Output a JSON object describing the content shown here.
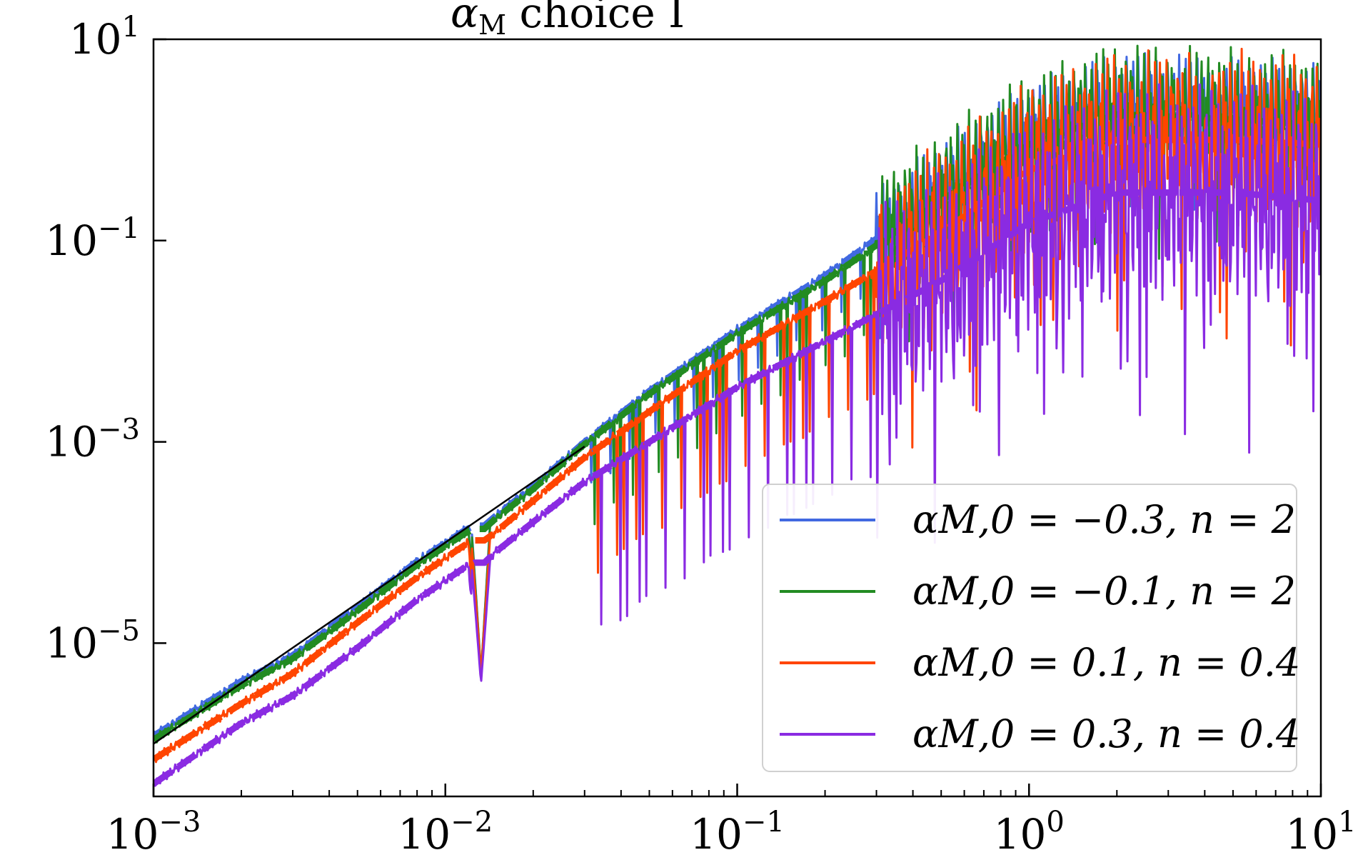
{
  "chart_data": {
    "type": "line",
    "title": "αM choice I",
    "xlabel": "",
    "ylabel": "",
    "xscale": "log",
    "yscale": "log",
    "xlim": [
      0.001,
      10
    ],
    "ylim": [
      3e-07,
      10
    ],
    "x_ticks": [
      0.001,
      0.01,
      0.1,
      1,
      10
    ],
    "x_tick_labels": [
      "10⁻³",
      "10⁻²",
      "10⁻¹",
      "10⁰",
      "10¹"
    ],
    "y_ticks": [
      1e-05,
      0.001,
      0.1,
      10
    ],
    "y_tick_labels": [
      "10⁻⁵",
      "10⁻³",
      "10⁻¹",
      "10¹"
    ],
    "legend_position": "lower-right",
    "grid": false,
    "colors": {
      "blue": "#4169e1",
      "green": "#228b22",
      "orange": "#ff4500",
      "purple": "#8a2be2",
      "reference": "#000000"
    },
    "series": [
      {
        "name": "αM,0 = −0.3, n = 2",
        "color": "#4169e1",
        "x": [
          0.001,
          0.002,
          0.003,
          0.005,
          0.008,
          0.012,
          0.013,
          0.014,
          0.02,
          0.03,
          0.05,
          0.1,
          0.2,
          0.5,
          1,
          2,
          5,
          10
        ],
        "y": [
          1.2e-06,
          4.2e-06,
          7.5e-06,
          2.3e-05,
          6.5e-05,
          0.00014,
          5e-06,
          0.00016,
          0.00036,
          0.001,
          0.0032,
          0.013,
          0.045,
          0.3,
          1.1,
          2.2,
          2.0,
          1.7
        ]
      },
      {
        "name": "αM,0 = −0.1, n = 2",
        "color": "#228b22",
        "x": [
          0.001,
          0.002,
          0.003,
          0.005,
          0.008,
          0.012,
          0.013,
          0.014,
          0.02,
          0.03,
          0.05,
          0.1,
          0.2,
          0.5,
          1,
          2,
          5,
          10
        ],
        "y": [
          1.1e-06,
          3.8e-06,
          7e-06,
          2.1e-05,
          6e-05,
          0.00013,
          5e-06,
          0.00015,
          0.00034,
          0.00095,
          0.003,
          0.012,
          0.04,
          0.25,
          0.9,
          1.8,
          1.6,
          1.4
        ]
      },
      {
        "name": "αM,0 = 0.1, n = 0.4",
        "color": "#ff4500",
        "x": [
          0.001,
          0.002,
          0.003,
          0.005,
          0.008,
          0.012,
          0.013,
          0.014,
          0.02,
          0.03,
          0.05,
          0.1,
          0.2,
          0.5,
          1,
          2,
          5,
          10
        ],
        "y": [
          7e-07,
          2.5e-06,
          5e-06,
          1.6e-05,
          4.5e-05,
          0.0001,
          5e-06,
          0.00011,
          0.00026,
          0.0007,
          0.002,
          0.008,
          0.025,
          0.12,
          0.5,
          1.0,
          1.0,
          0.9
        ]
      },
      {
        "name": "αM,0 = 0.3, n = 0.4",
        "color": "#8a2be2",
        "x": [
          0.001,
          0.002,
          0.003,
          0.005,
          0.008,
          0.012,
          0.013,
          0.014,
          0.02,
          0.03,
          0.05,
          0.1,
          0.2,
          0.5,
          1,
          2,
          5,
          10
        ],
        "y": [
          4e-07,
          1.6e-06,
          3e-06,
          9e-06,
          2.7e-05,
          6e-05,
          4e-06,
          7e-05,
          0.00016,
          0.0004,
          0.001,
          0.0035,
          0.01,
          0.04,
          0.15,
          0.3,
          0.3,
          0.25
        ]
      }
    ]
  }
}
